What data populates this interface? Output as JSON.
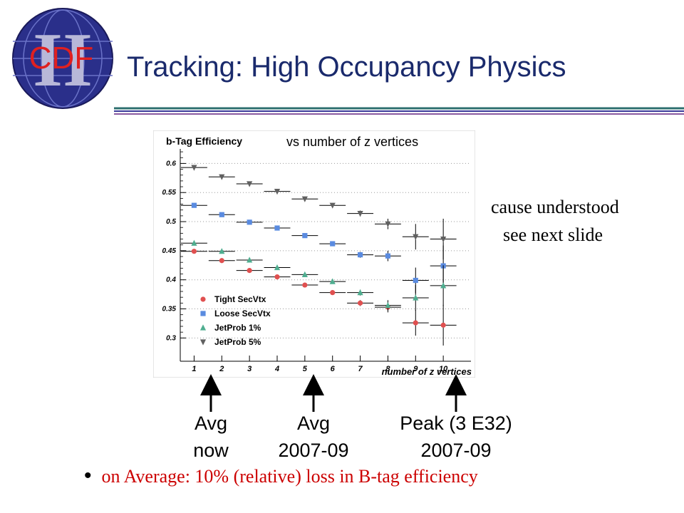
{
  "slide": {
    "title": "Tracking: High Occupancy Physics",
    "logo": {
      "text": "CDF",
      "roman_numeral": "II"
    },
    "plot_subtitle": "vs number of z vertices",
    "notes": [
      "cause understood",
      "see next slide"
    ],
    "arrow_labels": [
      {
        "lines": [
          "Avg",
          "now"
        ],
        "at_x": 1
      },
      {
        "lines": [
          "Avg",
          "2007-09"
        ],
        "at_x": 5
      },
      {
        "lines": [
          "Peak (3 E32)",
          "2007-09"
        ],
        "at_x": 10
      }
    ],
    "bullet_text": "on Average: 10% (relative) loss in B-tag efficiency",
    "colors": {
      "title": "#1a2a6c",
      "accent_red": "#cc0000"
    }
  },
  "chart_data": {
    "type": "scatter",
    "title": "b-Tag Efficiency",
    "xlabel": "number of z vertices",
    "ylabel": "",
    "x": [
      1,
      2,
      3,
      4,
      5,
      6,
      7,
      8,
      9,
      10
    ],
    "x_ticks": [
      "1",
      "2",
      "3",
      "4",
      "5",
      "6",
      "7",
      "8",
      "9",
      "10"
    ],
    "y_ticks": [
      "0.3",
      "0.35",
      "0.4",
      "0.45",
      "0.5",
      "0.55",
      "0.6"
    ],
    "xlim": [
      0.5,
      11
    ],
    "ylim": [
      0.26,
      0.625
    ],
    "grid": "horizontal dotted",
    "legend_position": "bottom-left",
    "series": [
      {
        "name": "Tight SecVtx",
        "marker": "circle",
        "color": "#e05050",
        "values": [
          0.449,
          0.433,
          0.416,
          0.405,
          0.391,
          0.378,
          0.36,
          0.353,
          0.326,
          0.322
        ],
        "errors": [
          0.002,
          0.002,
          0.002,
          0.002,
          0.003,
          0.003,
          0.005,
          0.009,
          0.022,
          0.035
        ]
      },
      {
        "name": "Loose SecVtx",
        "marker": "square",
        "color": "#5a8be0",
        "values": [
          0.528,
          0.512,
          0.499,
          0.489,
          0.476,
          0.462,
          0.443,
          0.441,
          0.399,
          0.424
        ],
        "errors": [
          0.002,
          0.002,
          0.002,
          0.002,
          0.003,
          0.003,
          0.005,
          0.009,
          0.022,
          0.035
        ]
      },
      {
        "name": "JetProb 1%",
        "marker": "triangle-up",
        "color": "#4fae90",
        "values": [
          0.463,
          0.449,
          0.434,
          0.421,
          0.409,
          0.397,
          0.378,
          0.356,
          0.369,
          0.39
        ],
        "errors": [
          0.002,
          0.002,
          0.002,
          0.002,
          0.003,
          0.003,
          0.005,
          0.009,
          0.022,
          0.035
        ]
      },
      {
        "name": "JetProb 5%",
        "marker": "triangle-down",
        "color": "#606060",
        "values": [
          0.593,
          0.577,
          0.565,
          0.552,
          0.539,
          0.528,
          0.514,
          0.496,
          0.474,
          0.47
        ],
        "errors": [
          0.002,
          0.002,
          0.002,
          0.002,
          0.003,
          0.003,
          0.005,
          0.009,
          0.022,
          0.035
        ]
      }
    ]
  }
}
